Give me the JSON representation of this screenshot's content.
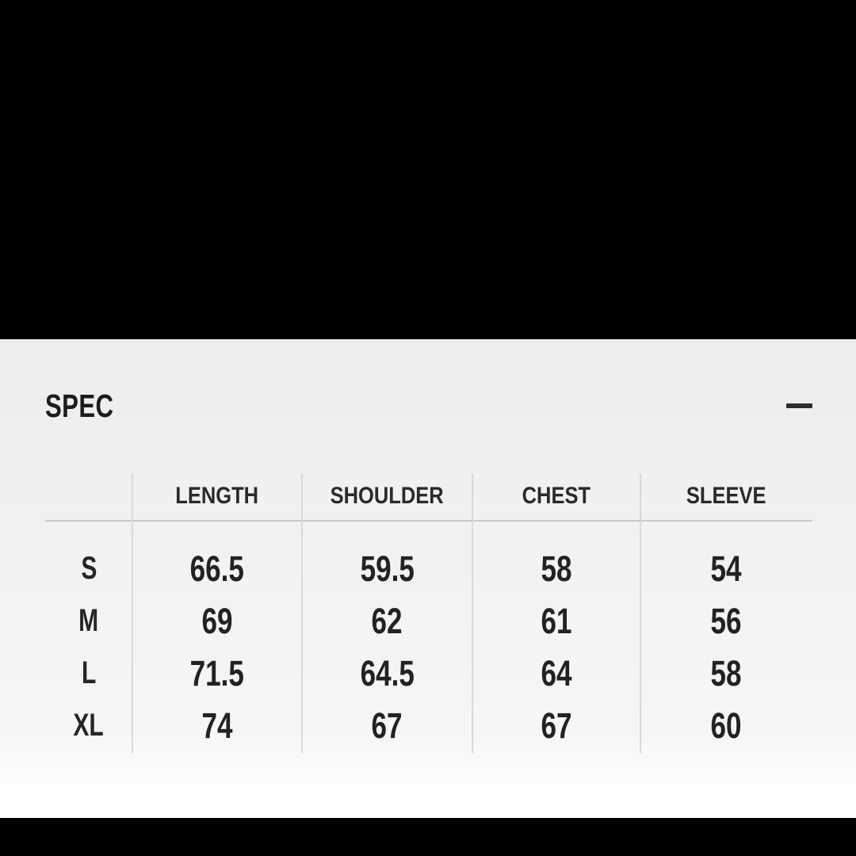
{
  "section": {
    "title": "SPEC"
  },
  "table": {
    "columns": [
      "LENGTH",
      "SHOULDER",
      "CHEST",
      "SLEEVE"
    ],
    "rows": [
      {
        "size": "S",
        "values": [
          "66.5",
          "59.5",
          "58",
          "54"
        ]
      },
      {
        "size": "M",
        "values": [
          "69",
          "62",
          "61",
          "56"
        ]
      },
      {
        "size": "L",
        "values": [
          "71.5",
          "64.5",
          "64",
          "58"
        ]
      },
      {
        "size": "XL",
        "values": [
          "74",
          "67",
          "67",
          "60"
        ]
      }
    ]
  },
  "colors": {
    "top_region_bg": "#000000",
    "panel_bg": "#f2f2f2",
    "divider_line": "#d9d9d9",
    "header_rule": "#c9c9c9",
    "text": "#222222",
    "bottom_bar_bg": "#000000"
  }
}
